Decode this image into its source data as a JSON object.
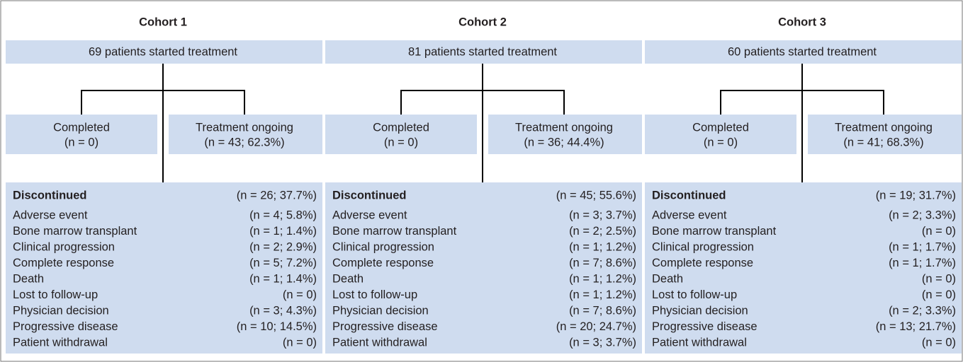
{
  "cohorts": [
    {
      "title": "Cohort 1",
      "start": "69 patients started treatment",
      "completed": {
        "label": "Completed",
        "n": "(n = 0)"
      },
      "ongoing": {
        "label": "Treatment ongoing",
        "n": "(n = 43; 62.3%)"
      },
      "discontinued": {
        "label": "Discontinued",
        "n": "(n = 26; 37.7%)"
      },
      "reasons": [
        {
          "label": "Adverse event",
          "n": "(n = 4; 5.8%)"
        },
        {
          "label": "Bone marrow transplant",
          "n": "(n = 1; 1.4%)"
        },
        {
          "label": "Clinical progression",
          "n": "(n = 2; 2.9%)"
        },
        {
          "label": "Complete response",
          "n": "(n = 5; 7.2%)"
        },
        {
          "label": "Death",
          "n": "(n = 1; 1.4%)"
        },
        {
          "label": "Lost to follow-up",
          "n": "(n = 0)"
        },
        {
          "label": "Physician decision",
          "n": "(n = 3; 4.3%)"
        },
        {
          "label": "Progressive disease",
          "n": "(n = 10; 14.5%)"
        },
        {
          "label": "Patient withdrawal",
          "n": "(n = 0)"
        }
      ]
    },
    {
      "title": "Cohort 2",
      "start": "81 patients started treatment",
      "completed": {
        "label": "Completed",
        "n": "(n = 0)"
      },
      "ongoing": {
        "label": "Treatment ongoing",
        "n": "(n = 36; 44.4%)"
      },
      "discontinued": {
        "label": "Discontinued",
        "n": "(n = 45; 55.6%)"
      },
      "reasons": [
        {
          "label": "Adverse event",
          "n": "(n = 3; 3.7%)"
        },
        {
          "label": "Bone marrow transplant",
          "n": "(n = 2; 2.5%)"
        },
        {
          "label": "Clinical progression",
          "n": "(n = 1; 1.2%)"
        },
        {
          "label": "Complete response",
          "n": "(n = 7; 8.6%)"
        },
        {
          "label": "Death",
          "n": "(n = 1; 1.2%)"
        },
        {
          "label": "Lost to follow-up",
          "n": "(n = 1; 1.2%)"
        },
        {
          "label": "Physician decision",
          "n": "(n = 7; 8.6%)"
        },
        {
          "label": "Progressive disease",
          "n": "(n = 20; 24.7%)"
        },
        {
          "label": "Patient withdrawal",
          "n": "(n = 3; 3.7%)"
        }
      ]
    },
    {
      "title": "Cohort 3",
      "start": "60 patients started treatment",
      "completed": {
        "label": "Completed",
        "n": "(n = 0)"
      },
      "ongoing": {
        "label": "Treatment ongoing",
        "n": "(n = 41; 68.3%)"
      },
      "discontinued": {
        "label": "Discontinued",
        "n": "(n = 19; 31.7%)"
      },
      "reasons": [
        {
          "label": "Adverse event",
          "n": "(n = 2; 3.3%)"
        },
        {
          "label": "Bone marrow transplant",
          "n": "(n = 0)"
        },
        {
          "label": "Clinical progression",
          "n": "(n = 1; 1.7%)"
        },
        {
          "label": "Complete response",
          "n": "(n = 1; 1.7%)"
        },
        {
          "label": "Death",
          "n": "(n = 0)"
        },
        {
          "label": "Lost to follow-up",
          "n": "(n = 0)"
        },
        {
          "label": "Physician decision",
          "n": "(n = 2; 3.3%)"
        },
        {
          "label": "Progressive disease",
          "n": "(n = 13; 21.7%)"
        },
        {
          "label": "Patient withdrawal",
          "n": "(n = 0)"
        }
      ]
    }
  ]
}
